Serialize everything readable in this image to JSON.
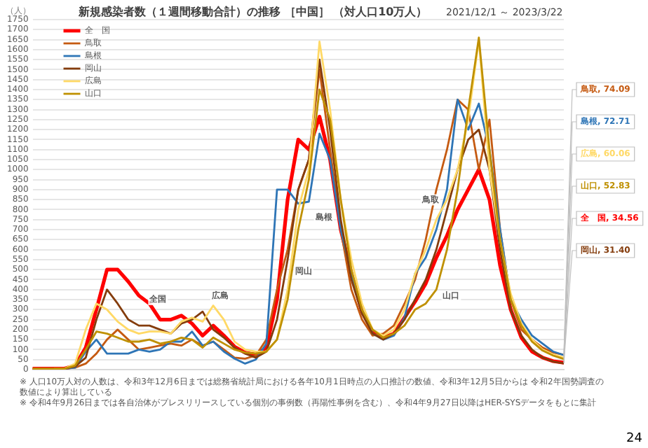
{
  "chart_data": {
    "type": "line",
    "title": "新規感染者数（１週間移動合計）の推移 ［中国］ （対人口10万人）",
    "subtitle": "2021/12/1 ～ 2023/3/22",
    "ylabel": "（人）",
    "categories": [
      null,
      null,
      null,
      null,
      null,
      null,
      null,
      null,
      null,
      null,
      null,
      null,
      null,
      null,
      null,
      null,
      null,
      null,
      null,
      null,
      null,
      null,
      null,
      null,
      null,
      null,
      null,
      null,
      null,
      null,
      null,
      null,
      null,
      null,
      null,
      null,
      null,
      null,
      null,
      null,
      null,
      null,
      null,
      null,
      null,
      null,
      null,
      null,
      null,
      null,
      null
    ],
    "ylim": [
      0,
      1750
    ],
    "yticks": [
      0,
      50,
      100,
      150,
      200,
      250,
      300,
      350,
      400,
      450,
      500,
      550,
      600,
      650,
      700,
      750,
      800,
      850,
      900,
      950,
      1000,
      1050,
      1100,
      1150,
      1200,
      1250,
      1300,
      1350,
      1400,
      1450,
      1500,
      1550,
      1600,
      1650,
      1700,
      1750
    ],
    "grid": "y",
    "legend": "top left",
    "series": [
      {
        "name": "全　国",
        "color": "#ff0000",
        "values": [
          5,
          5,
          5,
          5,
          20,
          110,
          300,
          500,
          500,
          440,
          370,
          330,
          250,
          250,
          270,
          230,
          170,
          220,
          170,
          115,
          85,
          75,
          110,
          350,
          850,
          1150,
          1100,
          1265,
          1050,
          700,
          480,
          290,
          190,
          160,
          180,
          260,
          340,
          430,
          560,
          670,
          800,
          900,
          1000,
          850,
          520,
          300,
          160,
          90,
          60,
          42,
          34.56
        ],
        "value_labels": [
          null,
          null,
          null,
          null,
          null,
          null,
          null,
          null,
          null,
          null,
          null,
          null,
          null,
          null,
          null,
          null,
          null,
          null,
          null,
          null,
          null,
          null,
          null,
          null,
          null,
          null,
          null,
          null,
          null,
          null,
          null,
          null,
          null,
          null,
          null,
          null,
          null,
          null,
          null,
          null,
          null,
          null,
          null,
          null,
          null,
          null,
          null,
          null,
          null,
          null,
          "全　国, 34.56"
        ]
      },
      {
        "name": "鳥取",
        "color": "#c55a11",
        "values": [
          5,
          5,
          5,
          5,
          10,
          30,
          80,
          150,
          200,
          150,
          100,
          110,
          120,
          130,
          120,
          150,
          120,
          140,
          100,
          60,
          55,
          70,
          150,
          400,
          600,
          900,
          1050,
          1500,
          1100,
          700,
          400,
          250,
          170,
          180,
          220,
          330,
          450,
          650,
          900,
          1100,
          1350,
          1300,
          1000,
          1250,
          700,
          350,
          200,
          150,
          110,
          85,
          74.09
        ],
        "value_labels": [
          null,
          null,
          null,
          null,
          null,
          null,
          null,
          null,
          null,
          null,
          null,
          null,
          null,
          null,
          null,
          null,
          null,
          null,
          null,
          null,
          null,
          null,
          null,
          null,
          null,
          null,
          null,
          null,
          null,
          null,
          null,
          null,
          null,
          null,
          null,
          null,
          null,
          null,
          null,
          null,
          null,
          null,
          null,
          null,
          null,
          null,
          null,
          null,
          null,
          null,
          "鳥取, 74.09"
        ]
      },
      {
        "name": "島根",
        "color": "#2e75b6",
        "values": [
          null,
          null,
          5,
          5,
          10,
          90,
          150,
          80,
          80,
          80,
          100,
          90,
          100,
          140,
          140,
          190,
          120,
          140,
          90,
          55,
          30,
          50,
          130,
          900,
          900,
          830,
          840,
          1180,
          1050,
          700,
          480,
          300,
          180,
          150,
          170,
          260,
          480,
          560,
          700,
          900,
          1350,
          1200,
          1330,
          1100,
          700,
          350,
          250,
          170,
          130,
          90,
          72.71
        ],
        "value_labels": [
          null,
          null,
          null,
          null,
          null,
          null,
          null,
          null,
          null,
          null,
          null,
          null,
          null,
          null,
          null,
          null,
          null,
          null,
          null,
          null,
          null,
          null,
          null,
          null,
          null,
          null,
          null,
          null,
          null,
          null,
          null,
          null,
          null,
          null,
          null,
          null,
          null,
          null,
          null,
          null,
          null,
          null,
          null,
          null,
          null,
          null,
          null,
          null,
          null,
          null,
          "島根, 72.71"
        ]
      },
      {
        "name": "岡山",
        "color": "#843c0c",
        "values": [
          null,
          null,
          5,
          5,
          15,
          60,
          250,
          400,
          330,
          250,
          220,
          220,
          200,
          180,
          230,
          250,
          290,
          200,
          160,
          110,
          80,
          60,
          90,
          250,
          550,
          900,
          1050,
          1550,
          1200,
          750,
          450,
          280,
          180,
          150,
          180,
          250,
          350,
          450,
          600,
          800,
          1000,
          1150,
          1200,
          1000,
          600,
          300,
          170,
          100,
          60,
          40,
          31.4
        ],
        "value_labels": [
          null,
          null,
          null,
          null,
          null,
          null,
          null,
          null,
          null,
          null,
          null,
          null,
          null,
          null,
          null,
          null,
          null,
          null,
          null,
          null,
          null,
          null,
          null,
          null,
          null,
          null,
          null,
          null,
          null,
          null,
          null,
          null,
          null,
          null,
          null,
          null,
          null,
          null,
          null,
          null,
          null,
          null,
          null,
          null,
          null,
          null,
          null,
          null,
          null,
          null,
          "岡山, 31.40"
        ]
      },
      {
        "name": "広島",
        "color": "#ffd966",
        "values": [
          null,
          null,
          5,
          5,
          30,
          200,
          330,
          300,
          240,
          200,
          180,
          190,
          190,
          180,
          240,
          260,
          240,
          320,
          250,
          140,
          100,
          90,
          90,
          150,
          400,
          800,
          1000,
          1640,
          1300,
          850,
          550,
          330,
          200,
          170,
          200,
          300,
          480,
          600,
          750,
          850,
          1000,
          1250,
          1650,
          1000,
          650,
          380,
          230,
          150,
          100,
          75,
          60.06
        ],
        "value_labels": [
          null,
          null,
          null,
          null,
          null,
          null,
          null,
          null,
          null,
          null,
          null,
          null,
          null,
          null,
          null,
          null,
          null,
          null,
          null,
          null,
          null,
          null,
          null,
          null,
          null,
          null,
          null,
          null,
          null,
          null,
          null,
          null,
          null,
          null,
          null,
          null,
          null,
          null,
          null,
          null,
          null,
          null,
          null,
          null,
          null,
          null,
          null,
          null,
          null,
          null,
          "広島, 60.06"
        ]
      },
      {
        "name": "山口",
        "color": "#bf9000",
        "values": [
          5,
          5,
          5,
          5,
          20,
          100,
          190,
          180,
          160,
          140,
          140,
          150,
          130,
          140,
          160,
          150,
          110,
          160,
          130,
          100,
          85,
          80,
          90,
          150,
          350,
          700,
          950,
          1400,
          1250,
          850,
          500,
          300,
          200,
          160,
          180,
          220,
          300,
          330,
          400,
          600,
          900,
          1300,
          1660,
          1100,
          650,
          350,
          220,
          140,
          95,
          70,
          52.83
        ],
        "value_labels": [
          null,
          null,
          null,
          null,
          null,
          null,
          null,
          null,
          null,
          null,
          null,
          null,
          null,
          null,
          null,
          null,
          null,
          null,
          null,
          null,
          null,
          null,
          null,
          null,
          null,
          null,
          null,
          null,
          null,
          null,
          null,
          null,
          null,
          null,
          null,
          null,
          null,
          null,
          null,
          null,
          null,
          null,
          null,
          null,
          null,
          null,
          null,
          null,
          null,
          null,
          "山口, 52.83"
        ]
      }
    ],
    "annotations": [
      "全国",
      "広島",
      "島根",
      "岡山",
      "鳥取",
      "山口",
      "※ 人口10万人対の人数は、令和3年12月6日までは総務省統計局における各年10月1日時点の人口推計の数値、令和3年12月5日からは 令和2年国勢調査の数値により算出している",
      "※ 令和4年9月26日までは各自治体がプレスリリースしている個別の事例数（再陽性事例を含む）、令和4年9月27日以降はHER-SYSデータをもとに集計",
      "24"
    ]
  }
}
